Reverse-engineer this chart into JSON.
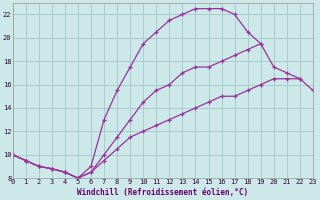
{
  "xlabel": "Windchill (Refroidissement éolien,°C)",
  "bg_color": "#cce8e8",
  "grid_color": "#aacccc",
  "line_color": "#993399",
  "xlim": [
    0,
    23
  ],
  "ylim": [
    8,
    23
  ],
  "xticks": [
    0,
    1,
    2,
    3,
    4,
    5,
    6,
    7,
    8,
    9,
    10,
    11,
    12,
    13,
    14,
    15,
    16,
    17,
    18,
    19,
    20,
    21,
    22,
    23
  ],
  "yticks": [
    8,
    10,
    12,
    14,
    16,
    18,
    20,
    22
  ],
  "line1_x": [
    0,
    1,
    2,
    3,
    4,
    5,
    6,
    7,
    8,
    9,
    10,
    11,
    12,
    13,
    14,
    15,
    16,
    17,
    18,
    19,
    20,
    21,
    22,
    23
  ],
  "line1_y": [
    10.0,
    9.5,
    9.0,
    8.8,
    8.5,
    8.0,
    8.5,
    9.5,
    10.5,
    11.5,
    12.0,
    12.5,
    13.0,
    13.5,
    14.0,
    14.5,
    15.0,
    15.0,
    15.5,
    16.0,
    16.5,
    16.5,
    16.5,
    15.5
  ],
  "line2_x": [
    0,
    1,
    2,
    3,
    4,
    5,
    6,
    7,
    8,
    9,
    10,
    11,
    12,
    13,
    14,
    15,
    16,
    17,
    18,
    19,
    20,
    21,
    22,
    23
  ],
  "line2_y": [
    10.0,
    9.5,
    9.0,
    8.8,
    8.5,
    8.0,
    8.5,
    10.0,
    11.5,
    13.0,
    14.5,
    15.5,
    16.0,
    17.0,
    17.5,
    17.5,
    18.0,
    18.5,
    19.0,
    19.5,
    17.5,
    17.0,
    16.5,
    null
  ],
  "line3_x": [
    0,
    1,
    2,
    3,
    4,
    5,
    6,
    7,
    8,
    9,
    10,
    11,
    12,
    13,
    14,
    15,
    16,
    17,
    18,
    19
  ],
  "line3_y": [
    10.0,
    9.5,
    9.0,
    8.8,
    8.5,
    8.0,
    9.0,
    13.0,
    15.5,
    17.5,
    19.5,
    20.5,
    21.5,
    22.0,
    22.5,
    22.5,
    22.5,
    22.0,
    20.5,
    19.5
  ]
}
